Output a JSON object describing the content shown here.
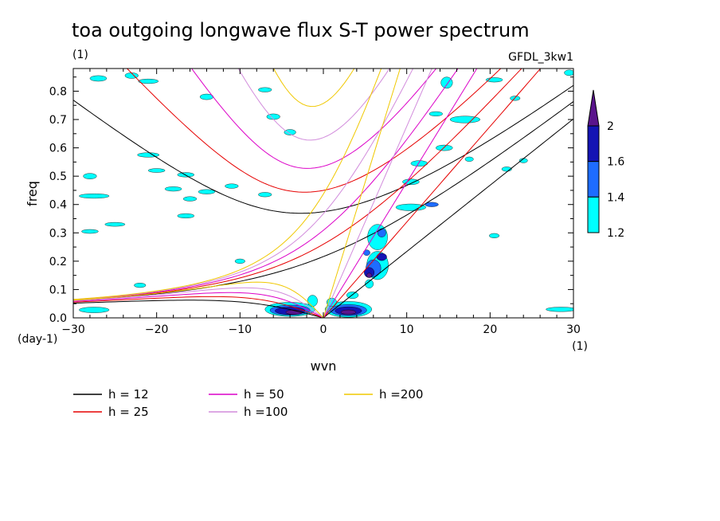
{
  "chart_data": {
    "type": "heatmap",
    "title": "toa outgoing longwave flux S-T power spectrum",
    "subtitle": "(1)",
    "model_label": "GFDL_3kw1",
    "xlabel": "wvn",
    "ylabel": "freq",
    "x_unit": "(1)",
    "y_unit": "(day-1)",
    "xlim": [
      -30,
      30
    ],
    "ylim": [
      0,
      0.88
    ],
    "x_ticks": [
      -30,
      -20,
      -10,
      0,
      10,
      20,
      30
    ],
    "y_ticks": [
      0.0,
      0.1,
      0.2,
      0.3,
      0.4,
      0.5,
      0.6,
      0.7,
      0.8
    ],
    "colorbar": {
      "levels": [
        1.2,
        1.4,
        1.6,
        2
      ],
      "colors": [
        "#00ffff",
        "#1e6cff",
        "#1414b4",
        "#5a148c"
      ],
      "tick_labels": [
        "1.2",
        "1.4",
        "1.6",
        "2"
      ]
    },
    "dispersion_curves": [
      {
        "name": "h = 12",
        "h": 12,
        "color": "#000000"
      },
      {
        "name": "h = 25",
        "h": 25,
        "color": "#e60000"
      },
      {
        "name": "h = 50",
        "h": 50,
        "color": "#dc00c8"
      },
      {
        "name": "h =100",
        "h": 100,
        "color": "#d28cdc"
      },
      {
        "name": "h =200",
        "h": 200,
        "color": "#f0c800"
      }
    ],
    "power_blobs": [
      {
        "x": -27,
        "y": 0.845,
        "rx": 1.0,
        "ry": 0.01,
        "level": 1
      },
      {
        "x": -23,
        "y": 0.855,
        "rx": 0.8,
        "ry": 0.01,
        "level": 1
      },
      {
        "x": -21,
        "y": 0.835,
        "rx": 1.2,
        "ry": 0.008,
        "level": 1
      },
      {
        "x": -14,
        "y": 0.78,
        "rx": 0.8,
        "ry": 0.01,
        "level": 1
      },
      {
        "x": -7,
        "y": 0.805,
        "rx": 0.8,
        "ry": 0.008,
        "level": 1
      },
      {
        "x": -21,
        "y": 0.575,
        "rx": 1.3,
        "ry": 0.008,
        "level": 1
      },
      {
        "x": -20,
        "y": 0.52,
        "rx": 1.0,
        "ry": 0.007,
        "level": 1
      },
      {
        "x": -16.5,
        "y": 0.505,
        "rx": 1.0,
        "ry": 0.008,
        "level": 1
      },
      {
        "x": -28,
        "y": 0.5,
        "rx": 0.8,
        "ry": 0.01,
        "level": 1
      },
      {
        "x": -27.5,
        "y": 0.43,
        "rx": 1.8,
        "ry": 0.008,
        "level": 1
      },
      {
        "x": -18,
        "y": 0.455,
        "rx": 1.0,
        "ry": 0.008,
        "level": 1
      },
      {
        "x": -16,
        "y": 0.42,
        "rx": 0.8,
        "ry": 0.008,
        "level": 1
      },
      {
        "x": -16.5,
        "y": 0.36,
        "rx": 1.0,
        "ry": 0.008,
        "level": 1
      },
      {
        "x": -14,
        "y": 0.445,
        "rx": 1.0,
        "ry": 0.008,
        "level": 1
      },
      {
        "x": -11,
        "y": 0.465,
        "rx": 0.8,
        "ry": 0.008,
        "level": 1
      },
      {
        "x": -7,
        "y": 0.435,
        "rx": 0.8,
        "ry": 0.008,
        "level": 1
      },
      {
        "x": -6,
        "y": 0.71,
        "rx": 0.8,
        "ry": 0.01,
        "level": 1
      },
      {
        "x": -4,
        "y": 0.655,
        "rx": 0.7,
        "ry": 0.01,
        "level": 1
      },
      {
        "x": -25,
        "y": 0.33,
        "rx": 1.2,
        "ry": 0.007,
        "level": 1
      },
      {
        "x": -28,
        "y": 0.305,
        "rx": 1.0,
        "ry": 0.007,
        "level": 1
      },
      {
        "x": -10,
        "y": 0.2,
        "rx": 0.6,
        "ry": 0.008,
        "level": 1
      },
      {
        "x": -22,
        "y": 0.115,
        "rx": 0.7,
        "ry": 0.008,
        "level": 1
      },
      {
        "x": -27.5,
        "y": 0.028,
        "rx": 1.8,
        "ry": 0.01,
        "level": 1
      },
      {
        "x": -4,
        "y": 0.03,
        "rx": 3.0,
        "ry": 0.025,
        "level": 1
      },
      {
        "x": -4,
        "y": 0.027,
        "rx": 2.4,
        "ry": 0.018,
        "level": 2
      },
      {
        "x": -4,
        "y": 0.025,
        "rx": 1.8,
        "ry": 0.013,
        "level": 3
      },
      {
        "x": -3.5,
        "y": 0.02,
        "rx": 1.0,
        "ry": 0.008,
        "level": 4
      },
      {
        "x": -1.3,
        "y": 0.06,
        "rx": 0.6,
        "ry": 0.02,
        "level": 1
      },
      {
        "x": 3,
        "y": 0.03,
        "rx": 2.8,
        "ry": 0.028,
        "level": 1
      },
      {
        "x": 3,
        "y": 0.027,
        "rx": 2.2,
        "ry": 0.02,
        "level": 2
      },
      {
        "x": 3,
        "y": 0.025,
        "rx": 1.6,
        "ry": 0.014,
        "level": 3
      },
      {
        "x": 3,
        "y": 0.02,
        "rx": 0.9,
        "ry": 0.008,
        "level": 4
      },
      {
        "x": 1,
        "y": 0.055,
        "rx": 0.6,
        "ry": 0.015,
        "level": 1
      },
      {
        "x": 3.5,
        "y": 0.08,
        "rx": 0.7,
        "ry": 0.012,
        "level": 1
      },
      {
        "x": 6.5,
        "y": 0.185,
        "rx": 1.3,
        "ry": 0.05,
        "level": 1
      },
      {
        "x": 6.0,
        "y": 0.175,
        "rx": 0.9,
        "ry": 0.03,
        "level": 2
      },
      {
        "x": 5.5,
        "y": 0.16,
        "rx": 0.6,
        "ry": 0.018,
        "level": 3
      },
      {
        "x": 7.0,
        "y": 0.215,
        "rx": 0.6,
        "ry": 0.013,
        "level": 3
      },
      {
        "x": 5.5,
        "y": 0.15,
        "rx": 0.3,
        "ry": 0.008,
        "level": 4
      },
      {
        "x": 5.5,
        "y": 0.12,
        "rx": 0.5,
        "ry": 0.015,
        "level": 1
      },
      {
        "x": 6.5,
        "y": 0.285,
        "rx": 1.2,
        "ry": 0.045,
        "level": 1
      },
      {
        "x": 7,
        "y": 0.3,
        "rx": 0.5,
        "ry": 0.015,
        "level": 2
      },
      {
        "x": 5.2,
        "y": 0.23,
        "rx": 0.4,
        "ry": 0.01,
        "level": 2
      },
      {
        "x": 10.5,
        "y": 0.39,
        "rx": 1.8,
        "ry": 0.012,
        "level": 1
      },
      {
        "x": 13,
        "y": 0.4,
        "rx": 0.8,
        "ry": 0.008,
        "level": 2
      },
      {
        "x": 10.5,
        "y": 0.48,
        "rx": 1.0,
        "ry": 0.01,
        "level": 1
      },
      {
        "x": 11.5,
        "y": 0.545,
        "rx": 1.0,
        "ry": 0.01,
        "level": 1
      },
      {
        "x": 14.5,
        "y": 0.6,
        "rx": 1.0,
        "ry": 0.01,
        "level": 1
      },
      {
        "x": 13.5,
        "y": 0.72,
        "rx": 0.8,
        "ry": 0.008,
        "level": 1
      },
      {
        "x": 17,
        "y": 0.7,
        "rx": 1.8,
        "ry": 0.012,
        "level": 1
      },
      {
        "x": 20.5,
        "y": 0.84,
        "rx": 1.0,
        "ry": 0.008,
        "level": 1
      },
      {
        "x": 23,
        "y": 0.775,
        "rx": 0.6,
        "ry": 0.008,
        "level": 1
      },
      {
        "x": 24,
        "y": 0.555,
        "rx": 0.5,
        "ry": 0.008,
        "level": 1
      },
      {
        "x": 14.8,
        "y": 0.83,
        "rx": 0.7,
        "ry": 0.02,
        "level": 1
      },
      {
        "x": 17.5,
        "y": 0.56,
        "rx": 0.5,
        "ry": 0.008,
        "level": 1
      },
      {
        "x": 20.5,
        "y": 0.29,
        "rx": 0.6,
        "ry": 0.008,
        "level": 1
      },
      {
        "x": 22,
        "y": 0.525,
        "rx": 0.6,
        "ry": 0.008,
        "level": 1
      },
      {
        "x": 28.5,
        "y": 0.03,
        "rx": 1.8,
        "ry": 0.008,
        "level": 1
      },
      {
        "x": 29.5,
        "y": 0.865,
        "rx": 0.6,
        "ry": 0.01,
        "level": 1
      }
    ]
  }
}
